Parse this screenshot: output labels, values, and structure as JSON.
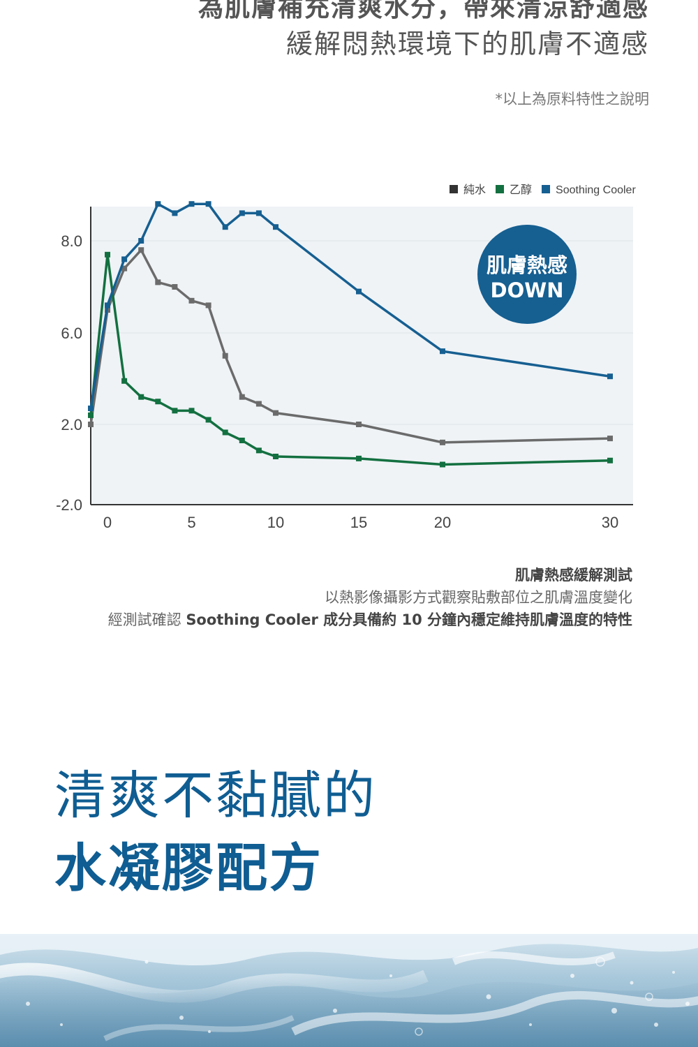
{
  "header": {
    "title": "為肌膚補充清爽水分，帶來清涼舒適感",
    "subtitle": "緩解悶熱環境下的肌膚不適感",
    "note": "*以上為原料特性之說明"
  },
  "chart_data": {
    "type": "line",
    "title": "",
    "xlabel": "",
    "ylabel": "",
    "x": [
      -1,
      0,
      1,
      2,
      3,
      4,
      5,
      6,
      7,
      8,
      9,
      10,
      15,
      20,
      30
    ],
    "x_ticks": [
      0,
      5,
      10,
      15,
      20,
      30
    ],
    "x_tick_labels": [
      "0",
      "5",
      "10",
      "15",
      "20",
      "30"
    ],
    "y_ticks": [
      8.0,
      6.0,
      2.0,
      -2.0
    ],
    "y_tick_labels": [
      "8.0",
      "6.0",
      "2.0",
      "-2.0"
    ],
    "grid": true,
    "legend_position": "top-right",
    "series": [
      {
        "name": "純水",
        "color": "#6b6b6b",
        "legend_color": "#333333",
        "values": [
          2.0,
          6.5,
          7.4,
          7.8,
          7.1,
          7.0,
          6.7,
          6.6,
          5.0,
          3.2,
          2.9,
          2.5,
          2.0,
          1.1,
          1.3
        ]
      },
      {
        "name": "乙醇",
        "color": "#137040",
        "legend_color": "#137040",
        "values": [
          2.4,
          7.7,
          3.9,
          3.2,
          3.0,
          2.6,
          2.6,
          2.2,
          1.6,
          1.2,
          0.7,
          0.4,
          0.3,
          0.0,
          0.2
        ]
      },
      {
        "name": "Soothing Cooler",
        "color": "#165f91",
        "legend_color": "#165f91",
        "values": [
          2.7,
          6.6,
          7.6,
          8.0,
          8.8,
          8.6,
          8.8,
          8.8,
          8.3,
          8.6,
          8.6,
          8.3,
          6.9,
          5.2,
          4.1
        ]
      }
    ],
    "badge": {
      "line1": "肌膚熱感",
      "line2": "DOWN"
    }
  },
  "caption": {
    "title": "肌膚熱感緩解測試",
    "line1": "以熱影像攝影方式觀察貼敷部位之肌膚溫度變化",
    "line2_prefix": "經測試確認 ",
    "line2_bold": "Soothing Cooler 成分具備約 10 分鐘內穩定維持肌膚溫度的特性"
  },
  "headline": {
    "line1": "清爽不黏膩的",
    "line2": "水凝膠配方"
  }
}
